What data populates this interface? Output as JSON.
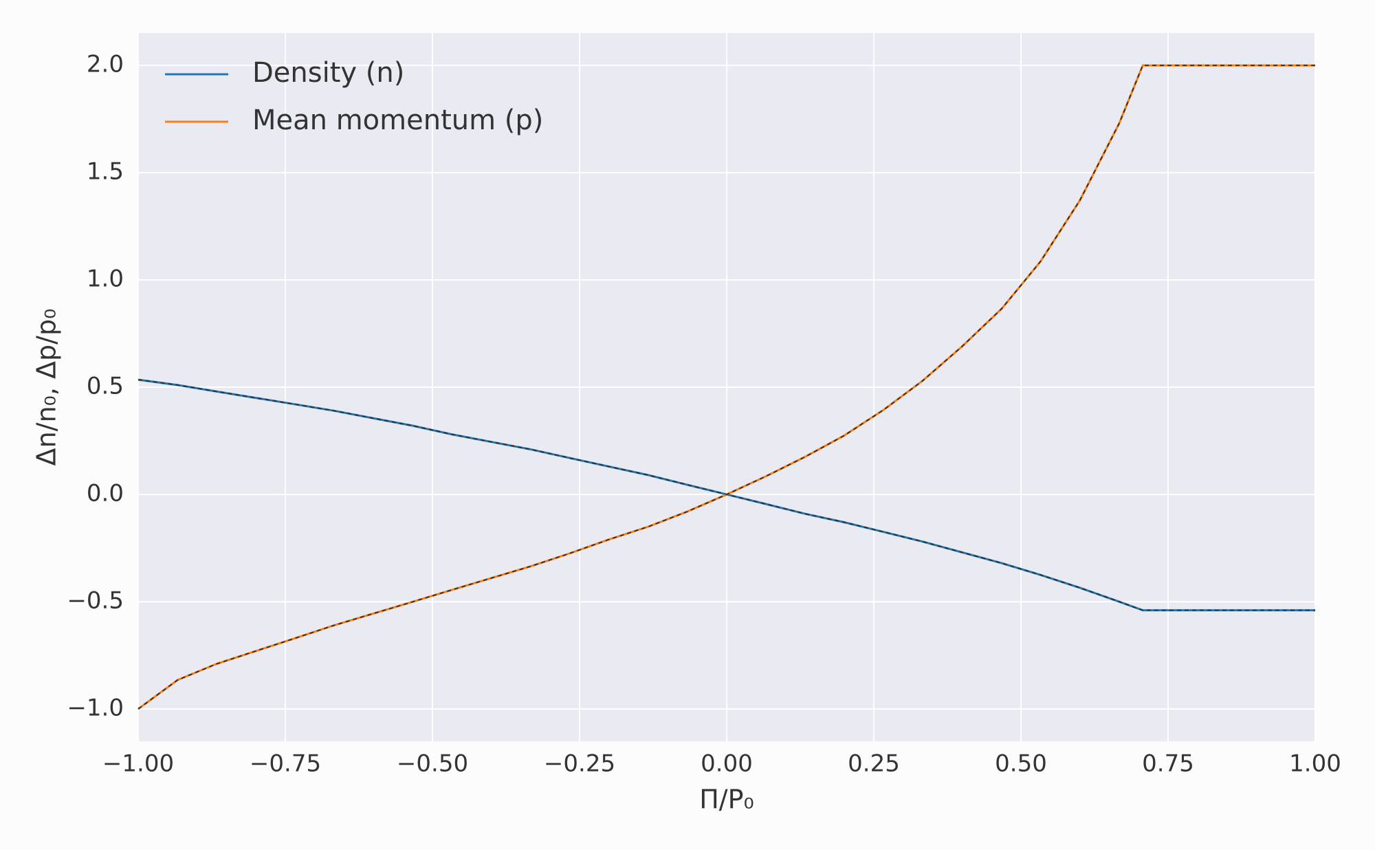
{
  "chart_data": {
    "type": "line",
    "x_label": "Π/P₀",
    "y_label": "Δn/n₀, Δp/p₀",
    "x": [
      -1,
      -0.933,
      -0.867,
      -0.8,
      -0.733,
      -0.667,
      -0.6,
      -0.533,
      -0.467,
      -0.4,
      -0.333,
      -0.267,
      -0.2,
      -0.133,
      -0.067,
      0,
      0.067,
      0.133,
      0.2,
      0.267,
      0.333,
      0.4,
      0.467,
      0.533,
      0.6,
      0.667,
      0.707,
      0.733,
      0.8,
      0.867,
      0.933,
      1
    ],
    "series": [
      {
        "name": "Density (n)",
        "color": "#1f77b4",
        "values": [
          0.535,
          0.51,
          0.48,
          0.45,
          0.42,
          0.39,
          0.355,
          0.32,
          0.28,
          0.245,
          0.21,
          0.17,
          0.13,
          0.09,
          0.045,
          0,
          -0.045,
          -0.09,
          -0.13,
          -0.175,
          -0.22,
          -0.27,
          -0.32,
          -0.375,
          -0.435,
          -0.5,
          -0.54,
          -0.54,
          -0.54,
          -0.54,
          -0.54,
          -0.54
        ]
      },
      {
        "name": "Mean momentum (p)",
        "color": "#ff7f0e",
        "values": [
          -1,
          -0.865,
          -0.79,
          -0.73,
          -0.67,
          -0.61,
          -0.555,
          -0.5,
          -0.445,
          -0.39,
          -0.335,
          -0.275,
          -0.21,
          -0.15,
          -0.08,
          0,
          0.085,
          0.175,
          0.275,
          0.395,
          0.53,
          0.69,
          0.865,
          1.085,
          1.37,
          1.73,
          2.0,
          2.0,
          2.0,
          2.0,
          2.0,
          2.0
        ]
      }
    ],
    "dashed_overlay_color": "#333333",
    "xlim": [
      -1,
      1
    ],
    "ylim": [
      -1.151,
      2.151
    ],
    "xticks": [
      {
        "value": -1,
        "label": "−1.00"
      },
      {
        "value": -0.75,
        "label": "−0.75"
      },
      {
        "value": -0.5,
        "label": "−0.50"
      },
      {
        "value": -0.25,
        "label": "−0.25"
      },
      {
        "value": 0,
        "label": "0.00"
      },
      {
        "value": 0.25,
        "label": "0.25"
      },
      {
        "value": 0.5,
        "label": "0.50"
      },
      {
        "value": 0.75,
        "label": "0.75"
      },
      {
        "value": 1,
        "label": "1.00"
      }
    ],
    "yticks": [
      {
        "value": -1,
        "label": "−1.0"
      },
      {
        "value": -0.5,
        "label": "−0.5"
      },
      {
        "value": 0,
        "label": "0.0"
      },
      {
        "value": 0.5,
        "label": "0.5"
      },
      {
        "value": 1,
        "label": "1.0"
      },
      {
        "value": 1.5,
        "label": "1.5"
      },
      {
        "value": 2,
        "label": "2.0"
      }
    ],
    "grid": true,
    "legend": "upper-left"
  }
}
